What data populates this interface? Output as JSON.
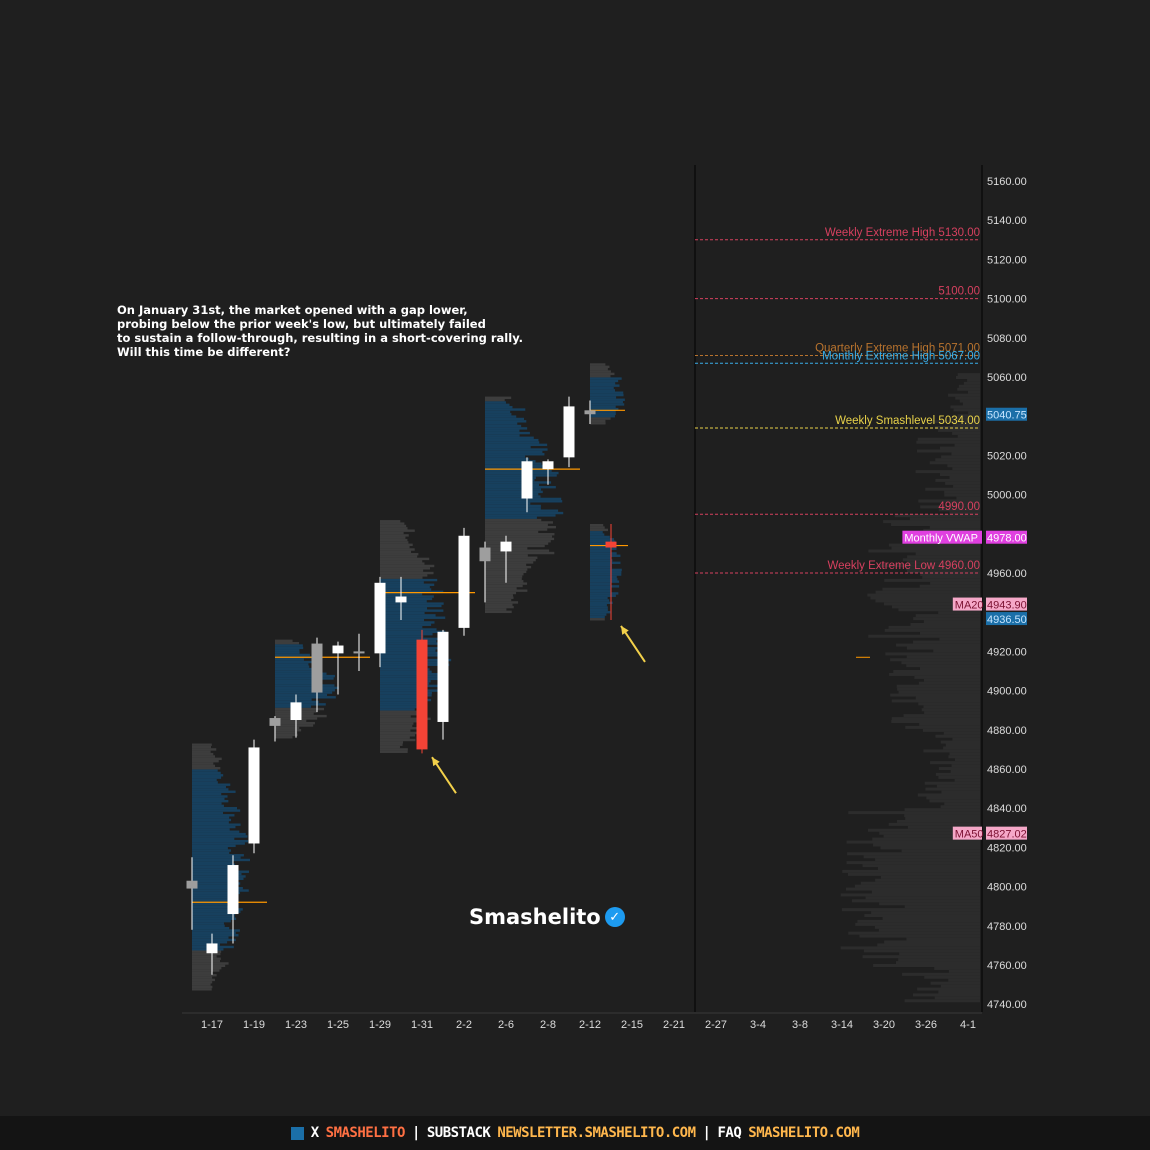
{
  "annotation": {
    "lines": [
      "On January 31st, the market opened with a gap lower,",
      "probing below the prior week's low, but ultimately failed",
      "to sustain a follow-through, resulting in a short-covering rally.",
      "Will this time be different?"
    ]
  },
  "brand": {
    "name": "Smashelito",
    "check_icon": "verified-check-icon",
    "check_color": "#1d9bf0"
  },
  "footer": {
    "square_color": "#1b6fa8",
    "x_label": "X",
    "x_handle": "SMASHELITO",
    "substack_label": "SUBSTACK",
    "substack_url": "NEWSLETTER.SMASHELITO.COM",
    "faq_label": "FAQ",
    "faq_url": "SMASHELITO.COM",
    "separator": "|",
    "accent_color": "#ff7043",
    "url_color": "#ffb74d"
  },
  "chart_data": {
    "type": "candlestick",
    "title": "",
    "ylim": [
      4735,
      5170
    ],
    "y_ticks": [
      "5160.00",
      "5140.00",
      "5120.00",
      "5100.00",
      "5080.00",
      "5060.00",
      "5020.00",
      "5000.00",
      "4960.00",
      "4920.00",
      "4900.00",
      "4880.00",
      "4860.00",
      "4840.00",
      "4820.00",
      "4800.00",
      "4780.00",
      "4760.00",
      "4740.00"
    ],
    "x_ticks": [
      "1-17",
      "1-19",
      "1-23",
      "1-25",
      "1-29",
      "1-31",
      "2-2",
      "2-6",
      "2-8",
      "2-12",
      "2-15",
      "2-21",
      "2-27",
      "3-4",
      "3-8",
      "3-14",
      "3-20",
      "3-26",
      "4-1"
    ],
    "candles": [
      {
        "x": "1-16",
        "open": 4799,
        "high": 4815,
        "low": 4778,
        "close": 4803,
        "color": "gray"
      },
      {
        "x": "1-17",
        "open": 4766,
        "high": 4776,
        "low": 4755,
        "close": 4771,
        "color": "white"
      },
      {
        "x": "1-18",
        "open": 4786,
        "high": 4816,
        "low": 4771,
        "close": 4811,
        "color": "white"
      },
      {
        "x": "1-19",
        "open": 4822,
        "high": 4875,
        "low": 4817,
        "close": 4871,
        "color": "white"
      },
      {
        "x": "1-22",
        "open": 4882,
        "high": 4887,
        "low": 4874,
        "close": 4886,
        "color": "gray"
      },
      {
        "x": "1-23",
        "open": 4885,
        "high": 4898,
        "low": 4876,
        "close": 4894,
        "color": "white"
      },
      {
        "x": "1-24",
        "open": 4924,
        "high": 4927,
        "low": 4889,
        "close": 4899,
        "color": "gray"
      },
      {
        "x": "1-25",
        "open": 4919,
        "high": 4925,
        "low": 4898,
        "close": 4923,
        "color": "white"
      },
      {
        "x": "1-26",
        "open": 4920,
        "high": 4929,
        "low": 4910,
        "close": 4919,
        "color": "gray"
      },
      {
        "x": "1-29",
        "open": 4919,
        "high": 4958,
        "low": 4912,
        "close": 4955,
        "color": "white"
      },
      {
        "x": "1-30",
        "open": 4945,
        "high": 4958,
        "low": 4936,
        "close": 4948,
        "color": "white"
      },
      {
        "x": "1-31",
        "open": 4926,
        "high": 4931,
        "low": 4868,
        "close": 4870,
        "color": "red"
      },
      {
        "x": "2-1",
        "open": 4884,
        "high": 4931,
        "low": 4875,
        "close": 4930,
        "color": "white"
      },
      {
        "x": "2-2",
        "open": 4932,
        "high": 4983,
        "low": 4928,
        "close": 4979,
        "color": "white"
      },
      {
        "x": "2-5",
        "open": 4966,
        "high": 4976,
        "low": 4945,
        "close": 4973,
        "color": "gray"
      },
      {
        "x": "2-6",
        "open": 4971,
        "high": 4979,
        "low": 4955,
        "close": 4976,
        "color": "white"
      },
      {
        "x": "2-7",
        "open": 4998,
        "high": 5019,
        "low": 4991,
        "close": 5017,
        "color": "white"
      },
      {
        "x": "2-8",
        "open": 5013,
        "high": 5018,
        "low": 5005,
        "close": 5017,
        "color": "white"
      },
      {
        "x": "2-9",
        "open": 5019,
        "high": 5050,
        "low": 5014,
        "close": 5045,
        "color": "white"
      },
      {
        "x": "2-12",
        "open": 5043,
        "high": 5048,
        "low": 5036,
        "close": 5041,
        "color": "gray"
      },
      {
        "x": "2-13",
        "open": 4976,
        "high": 4985,
        "low": 4936,
        "close": 4973,
        "color": "red"
      }
    ],
    "levels": [
      {
        "label": "Weekly Extreme High",
        "value": 5130.0,
        "text": "5130.00",
        "color": "#d6405f",
        "style": "dashed"
      },
      {
        "label": "",
        "value": 5100.0,
        "text": "5100.00",
        "color": "#d6405f",
        "style": "dashed"
      },
      {
        "label": "Quarterly Extreme High",
        "value": 5071.0,
        "text": "5071.00",
        "color": "#b8732e",
        "style": "dashed"
      },
      {
        "label": "Monthly Extreme High",
        "value": 5067.0,
        "text": "5067.00",
        "color": "#3aaee8",
        "style": "dashed"
      },
      {
        "label": "Weekly Smashlevel",
        "value": 5034.0,
        "text": "5034.00",
        "color": "#e8d24a",
        "style": "dashed"
      },
      {
        "label": "",
        "value": 4990.0,
        "text": "4990.00",
        "color": "#d6405f",
        "style": "dashed"
      },
      {
        "label": "Weekly Extreme Low",
        "value": 4960.0,
        "text": "4960.00",
        "color": "#d6405f",
        "style": "dashed"
      }
    ],
    "price_tags": [
      {
        "label": "",
        "value": 5040.75,
        "text": "5040.75",
        "bg": "#1b6fa8",
        "fg": "#c8e6ff"
      },
      {
        "label": "Monthly VWAP",
        "value": 4978.0,
        "text": "4978.00",
        "bg": "#e040e0",
        "fg": "#ffffff"
      },
      {
        "label": "MA20",
        "value": 4943.9,
        "text": "4943.90",
        "bg": "#f5a8c8",
        "fg": "#7a1030"
      },
      {
        "label": "",
        "value": 4936.5,
        "text": "4936.50",
        "bg": "#1b6fa8",
        "fg": "#c8e6ff"
      },
      {
        "label": "MA50",
        "value": 4827.02,
        "text": "4827.02",
        "bg": "#f5a8c8",
        "fg": "#7a1030"
      }
    ],
    "arrows": [
      {
        "to_x": "1-31",
        "to_y": 4866,
        "color": "#f2d04a"
      },
      {
        "to_x": "2-13",
        "to_y": 4933,
        "color": "#f2d04a"
      }
    ],
    "colors": {
      "background": "#1f1f1f",
      "axis_text": "#dddddd",
      "up": "#ffffff",
      "down": "#f44336",
      "neutral": "#9e9e9e",
      "profile_gray": "#3d3d3d",
      "profile_blue": "#17405e",
      "poc": "#ff9800",
      "composite": "#2c2c2c"
    }
  }
}
